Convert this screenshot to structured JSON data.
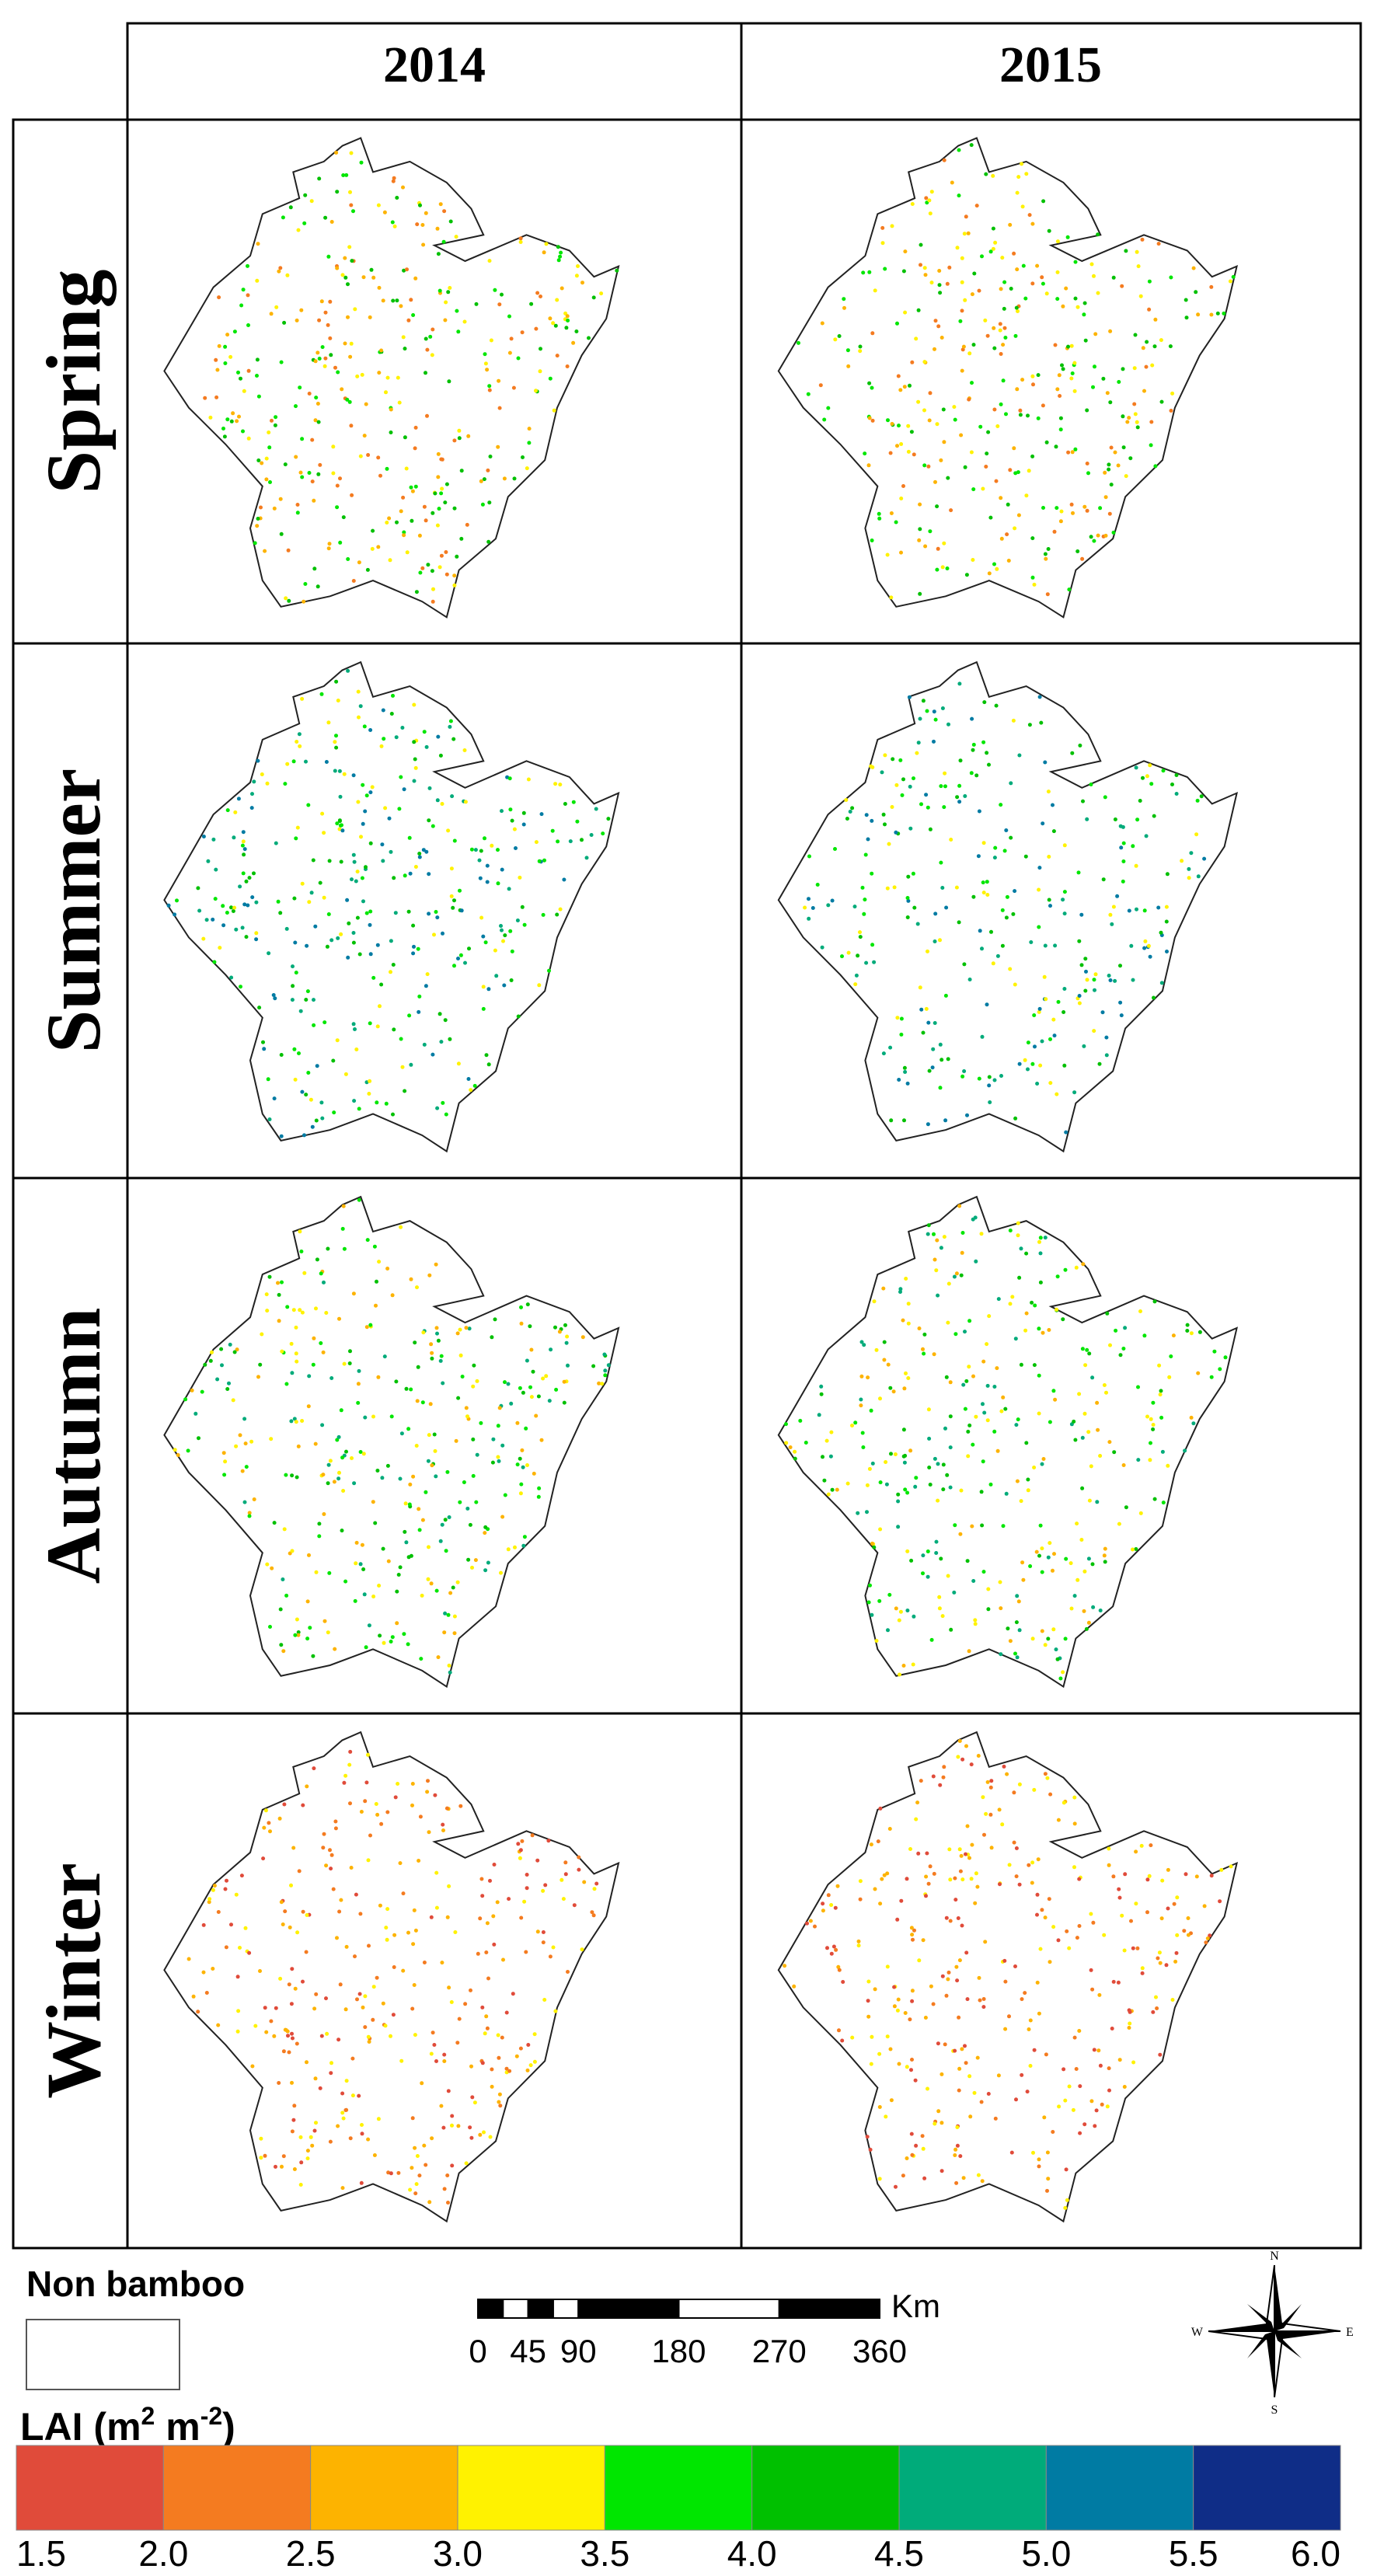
{
  "header": {
    "columns": [
      "2014",
      "2015"
    ]
  },
  "rows": [
    "Spring",
    "Summer",
    "Autumn",
    "Winter"
  ],
  "legend": {
    "non_bamboo": "Non bamboo",
    "lai_title": {
      "text": "LAI (m",
      "sup1": "2",
      "mid": " m",
      "sup2": "-2",
      "end": ")"
    },
    "classes": [
      "#e04b3a",
      "#f47b20",
      "#fdb300",
      "#fff200",
      "#00e600",
      "#00c000",
      "#00ab7a",
      "#007ba3",
      "#0f2d87"
    ],
    "breaks": [
      "1.5",
      "2.0",
      "2.5",
      "3.0",
      "3.5",
      "4.0",
      "4.5",
      "5.0",
      "5.5",
      "6.0"
    ]
  },
  "scale_bar": {
    "unit": "Km",
    "labels": [
      "0",
      "45",
      "90",
      "180",
      "270",
      "360"
    ]
  },
  "compass": {
    "n": "N",
    "s": "S",
    "e": "E",
    "w": "W"
  }
}
